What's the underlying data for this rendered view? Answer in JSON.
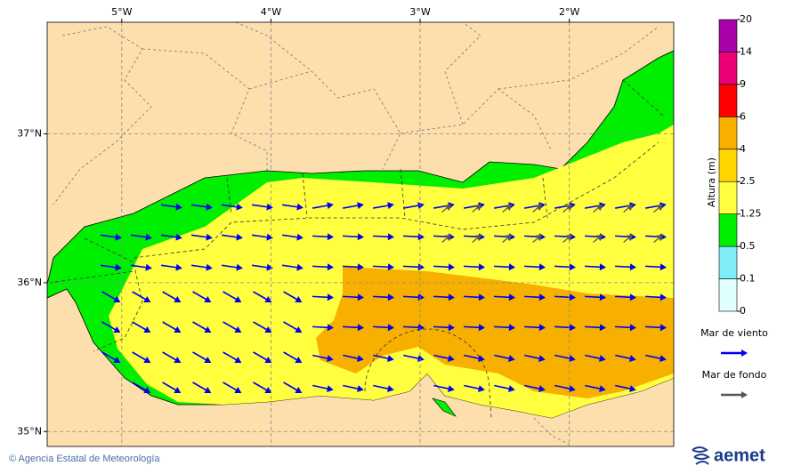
{
  "map": {
    "xlim": [
      -5.5,
      -1.3
    ],
    "ylim": [
      34.9,
      37.75
    ],
    "xticks": [
      {
        "value": -5,
        "label": "5°W"
      },
      {
        "value": -4,
        "label": "4°W"
      },
      {
        "value": -3,
        "label": "3°W"
      },
      {
        "value": -2,
        "label": "2°W"
      }
    ],
    "yticks": [
      {
        "value": 37,
        "label": "37°N"
      },
      {
        "value": 36,
        "label": "36°N"
      },
      {
        "value": 35,
        "label": "35°N"
      }
    ]
  },
  "colorbar": {
    "label": "Altura (m)",
    "levels": [
      0,
      0.1,
      0.5,
      1.25,
      2.5,
      4,
      6,
      9,
      14,
      20
    ],
    "colors": [
      "#e0ffff",
      "#80eef8",
      "#00ee00",
      "#ffff40",
      "#ffd500",
      "#f8b000",
      "#ff0000",
      "#ee0077",
      "#aa00aa"
    ]
  },
  "legend": {
    "items": [
      {
        "label": "Mar de viento",
        "color": "#0000ee"
      },
      {
        "label": "Mar de fondo",
        "color": "#555555"
      }
    ]
  },
  "footer": {
    "credit": "© Agencia Estatal de Meteorología",
    "logo": "aemet"
  }
}
